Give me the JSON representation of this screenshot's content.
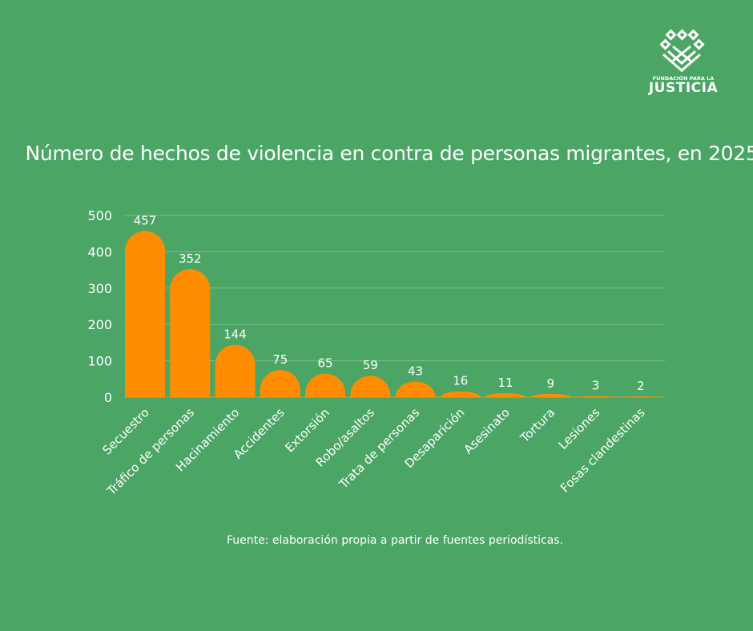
{
  "logo": {
    "line1": "FUNDACIÓN PARA LA",
    "line2": "JUSTICIA"
  },
  "source": "Fuente: elaboración propia a partir de fuentes periodísticas.",
  "chart_data": {
    "type": "bar",
    "title": "Número de hechos de violencia en contra de personas migrantes, en 2025",
    "categories": [
      "Secuestro",
      "Tráfico de personas",
      "Hacinamiento",
      "Accidentes",
      "Extorsión",
      "Robo/asaltos",
      "Trata de personas",
      "Desaparición",
      "Asesinato",
      "Tortura",
      "Lesiones",
      "Fosas clandestinas"
    ],
    "values": [
      457,
      352,
      144,
      75,
      65,
      59,
      43,
      16,
      11,
      9,
      3,
      2
    ],
    "ylim": [
      0,
      500
    ],
    "yticks": [
      "0",
      "100",
      "200",
      "300",
      "400",
      "500"
    ],
    "grid": true,
    "data_labels": true,
    "colors": {
      "bar": "#ff8c00",
      "background": "#4ba565",
      "grid": "#7cc08f"
    }
  }
}
